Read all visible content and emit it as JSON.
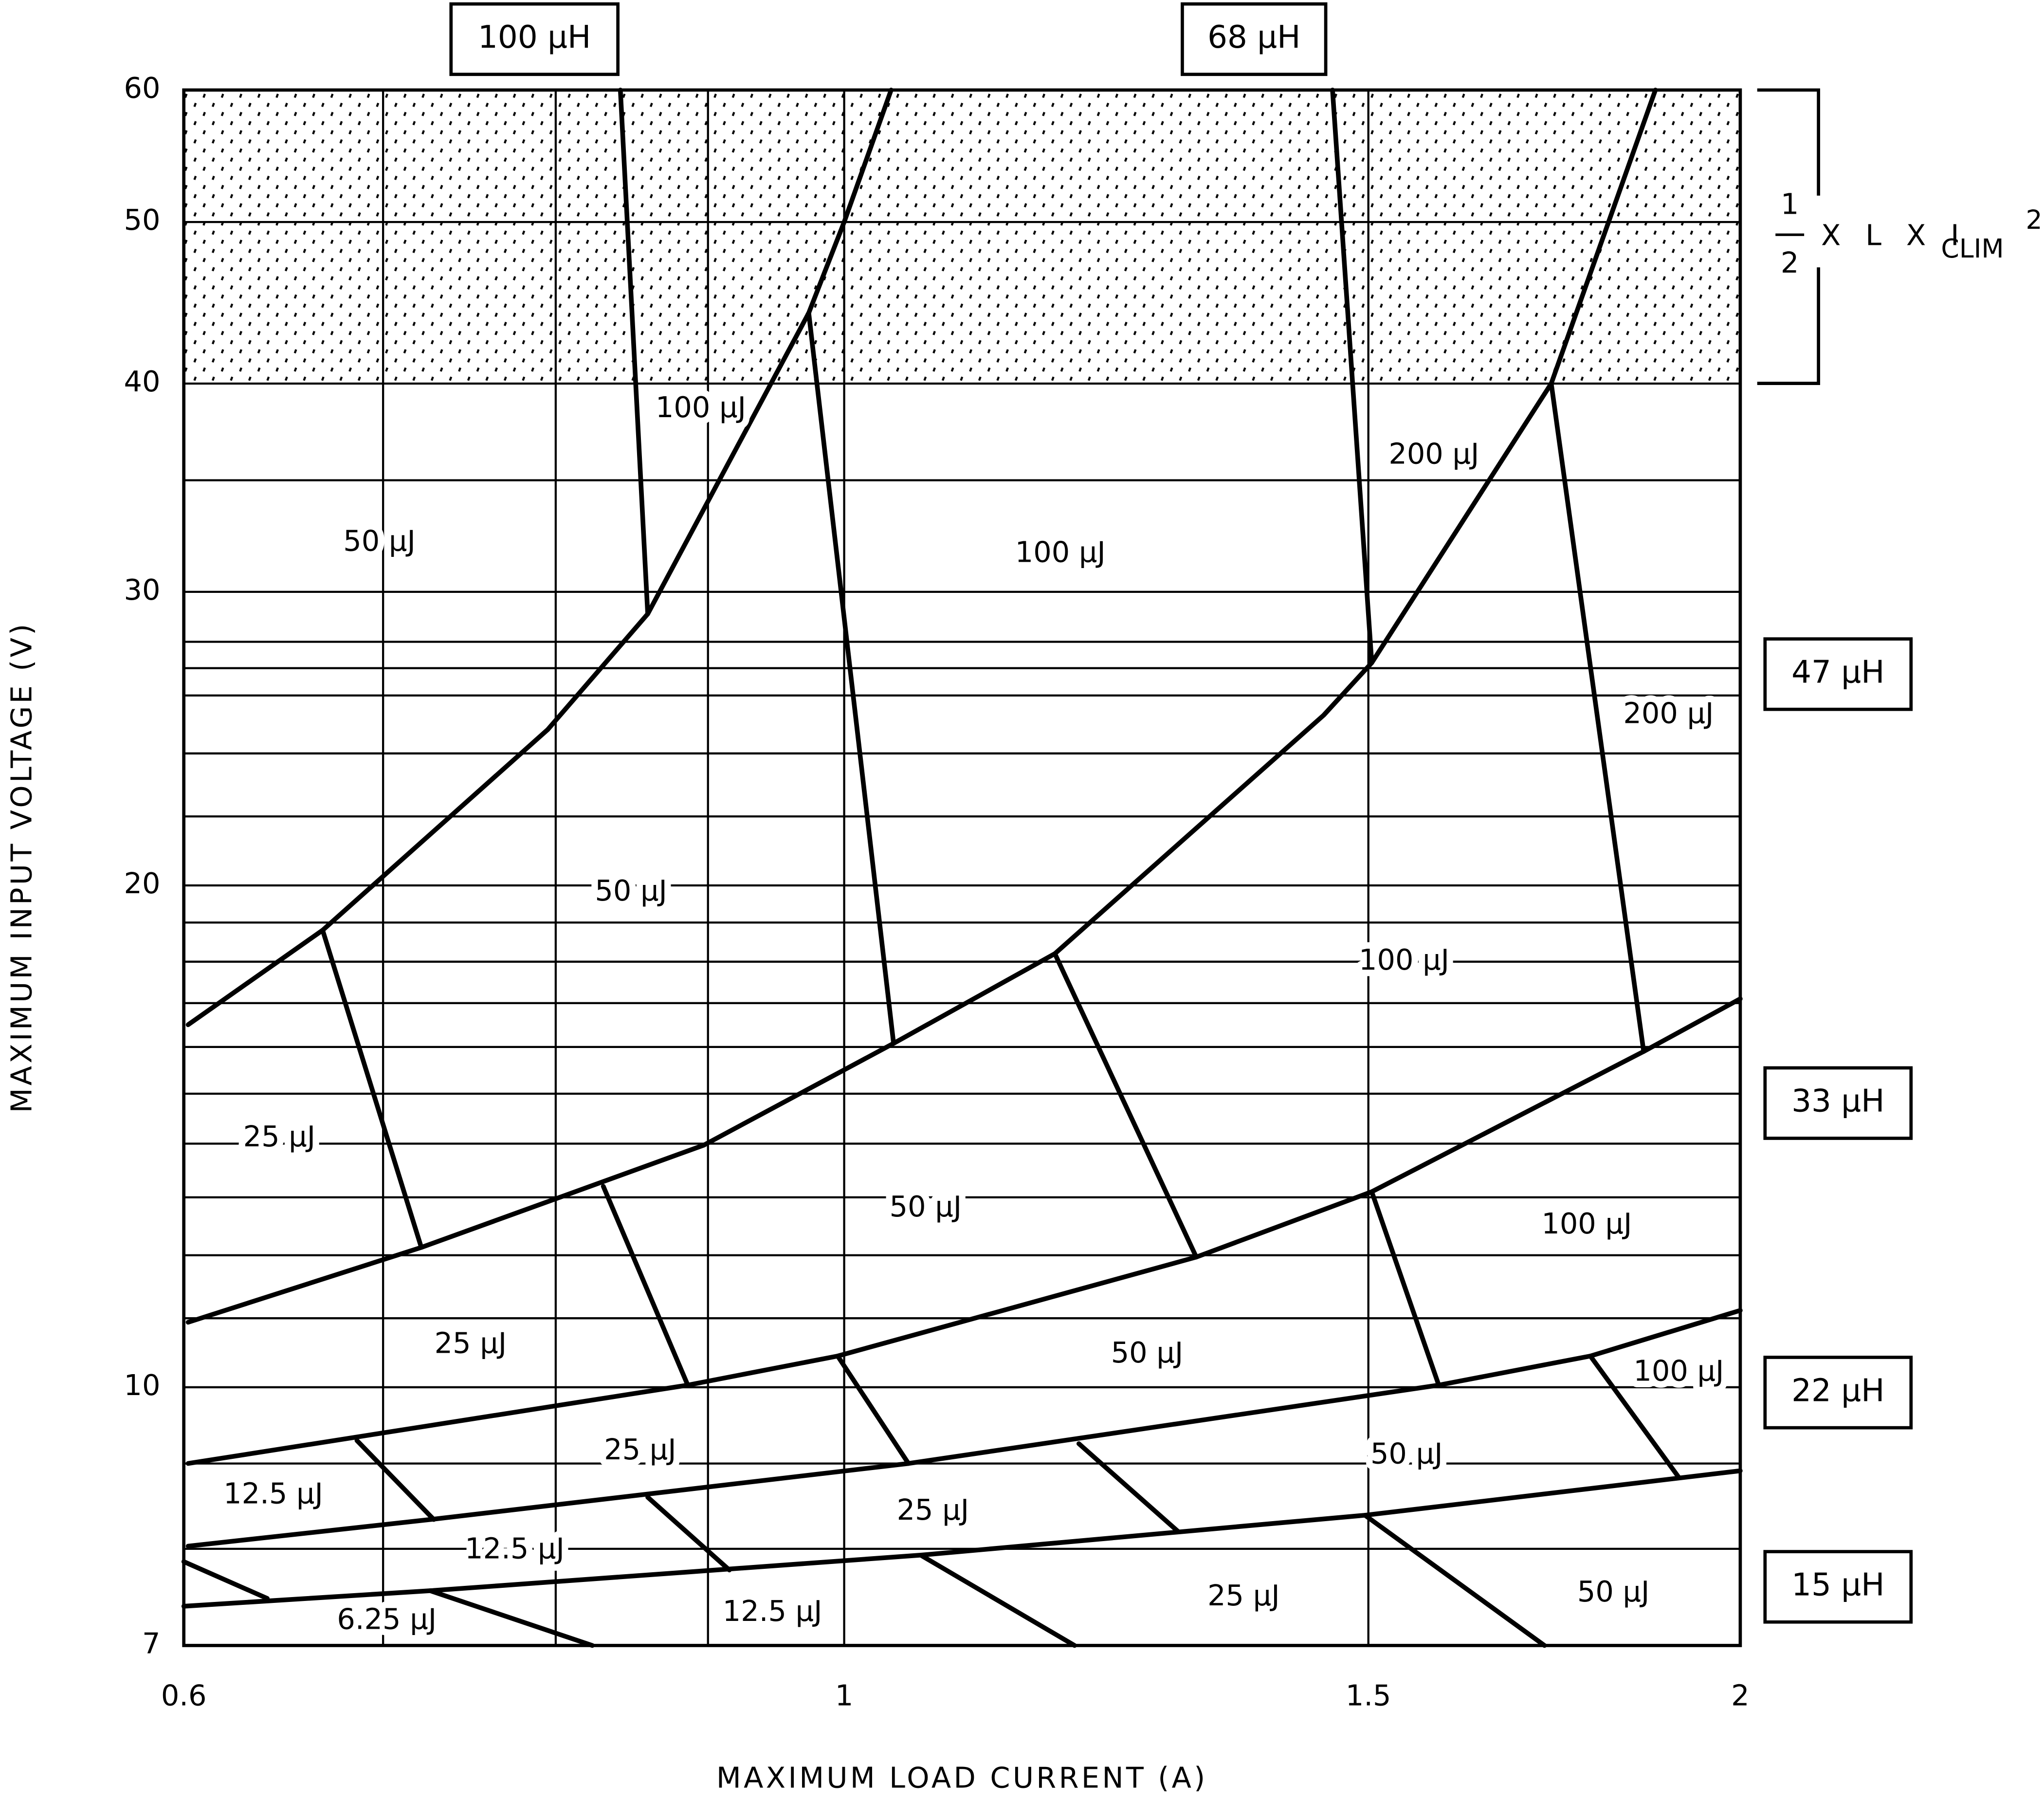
{
  "chart_data": {
    "type": "line",
    "x_label": "MAXIMUM LOAD CURRENT (A)",
    "y_label": "MAXIMUM INPUT VOLTAGE (V)",
    "log_x": true,
    "log_y": true,
    "grid": true,
    "color": "#000000",
    "xlim": [
      0.6,
      2
    ],
    "ylim": [
      7,
      60
    ],
    "xticks": [
      0.6,
      1,
      1.5,
      2
    ],
    "yticks": [
      7,
      10,
      20,
      30,
      40,
      50,
      60
    ],
    "x_minor_grid": [
      0.7,
      0.8,
      0.9
    ],
    "y_minor_grid": [
      8,
      9,
      11,
      12,
      13,
      14,
      15,
      16,
      17,
      18,
      19,
      22,
      24,
      26,
      27,
      28,
      35
    ],
    "shaded_band": [
      40,
      60
    ],
    "formula": {
      "numerator": "1",
      "denominator": "2",
      "text": "X L X I",
      "subscript": "CLIM",
      "superscript": "2"
    },
    "inductor_labels": [
      "100 μH",
      "68 μH",
      "47 μH",
      "33 μH",
      "22 μH",
      "15 μH"
    ],
    "series": [
      {
        "x": [
          0.602,
          0.668,
          0.795,
          0.859,
          0.973,
          1.0,
          1.037
        ],
        "values": [
          16.5,
          18.8,
          24.8,
          29.1,
          44.1,
          50,
          60
        ]
      },
      {
        "x": [
          0.602,
          0.721,
          0.897,
          1.039,
          1.177,
          1.449,
          1.504,
          1.728,
          1.873
        ],
        "values": [
          10.94,
          12.13,
          13.97,
          16.08,
          18.2,
          25.3,
          27.2,
          40,
          60
        ]
      },
      {
        "x": [
          0.602,
          0.886,
          0.995,
          1.313,
          1.504,
          1.856,
          2.0
        ],
        "values": [
          9.0,
          10.03,
          10.44,
          11.97,
          13.1,
          15.9,
          17.1
        ]
      },
      {
        "x": [
          0.602,
          0.726,
          1.051,
          1.584,
          1.781,
          2.0
        ],
        "values": [
          8.03,
          8.33,
          9.0,
          10.03,
          10.44,
          11.12
        ]
      },
      {
        "x": [
          0.6,
          0.726,
          1.061,
          1.496,
          2.0
        ],
        "values": [
          7.39,
          7.55,
          7.93,
          8.38,
          8.91
        ]
      },
      {
        "x": [
          0.841,
          0.859
        ],
        "values": [
          60,
          29.1
        ]
      },
      {
        "x": [
          0.973,
          1.039
        ],
        "values": [
          44.1,
          16.08
        ]
      },
      {
        "x": [
          1.459,
          1.504
        ],
        "values": [
          60,
          27.2
        ]
      },
      {
        "x": [
          1.728,
          1.856
        ],
        "values": [
          40,
          15.9
        ]
      },
      {
        "x": [
          0.668,
          0.721
        ],
        "values": [
          18.8,
          12.13
        ]
      },
      {
        "x": [
          1.177,
          1.313
        ],
        "values": [
          18.2,
          11.97
        ]
      },
      {
        "x": [
          0.83,
          0.886
        ],
        "values": [
          13.2,
          10.03
        ]
      },
      {
        "x": [
          1.504,
          1.584
        ],
        "values": [
          13.1,
          10.03
        ]
      },
      {
        "x": [
          0.995,
          1.051
        ],
        "values": [
          10.44,
          9.0
        ]
      },
      {
        "x": [
          1.199,
          1.295
        ],
        "values": [
          9.25,
          8.19
        ]
      },
      {
        "x": [
          1.781,
          1.907
        ],
        "values": [
          10.44,
          8.83
        ]
      },
      {
        "x": [
          0.686,
          0.728
        ],
        "values": [
          9.29,
          8.33
        ]
      },
      {
        "x": [
          0.859,
          0.915
        ],
        "values": [
          8.59,
          7.77
        ]
      },
      {
        "x": [
          1.496,
          1.719
        ],
        "values": [
          8.38,
          7
        ]
      },
      {
        "x": [
          1.061,
          1.195
        ],
        "values": [
          7.93,
          7
        ]
      },
      {
        "x": [
          0.726,
          0.823
        ],
        "values": [
          7.55,
          7
        ]
      },
      {
        "x": [
          0.6,
          0.64
        ],
        "values": [
          7.86,
          7.47
        ]
      }
    ],
    "annotations": [
      {
        "text": "100 μJ",
        "x": 0.895,
        "y": 38.6
      },
      {
        "text": "50 μJ",
        "x": 0.698,
        "y": 32.1
      },
      {
        "text": "100 μJ",
        "x": 1.182,
        "y": 31.6
      },
      {
        "text": "200 μJ",
        "x": 1.578,
        "y": 36.2
      },
      {
        "text": "200 μJ",
        "x": 1.892,
        "y": 25.3
      },
      {
        "text": "50 μJ",
        "x": 0.848,
        "y": 19.8
      },
      {
        "text": "100 μJ",
        "x": 1.542,
        "y": 18.0
      },
      {
        "text": "25 μJ",
        "x": 0.646,
        "y": 14.1
      },
      {
        "text": "50 μJ",
        "x": 1.065,
        "y": 12.8
      },
      {
        "text": "100 μJ",
        "x": 1.776,
        "y": 12.5
      },
      {
        "text": "25 μJ",
        "x": 0.749,
        "y": 10.6
      },
      {
        "text": "50 μJ",
        "x": 1.264,
        "y": 10.46
      },
      {
        "text": "100 μJ",
        "x": 1.907,
        "y": 10.2
      },
      {
        "text": "25 μJ",
        "x": 0.854,
        "y": 9.15
      },
      {
        "text": "50 μJ",
        "x": 1.545,
        "y": 9.1
      },
      {
        "text": "12.5 μJ",
        "x": 0.643,
        "y": 8.61
      },
      {
        "text": "25 μJ",
        "x": 1.071,
        "y": 8.42
      },
      {
        "text": "12.5 μJ",
        "x": 0.775,
        "y": 7.98
      },
      {
        "text": "25 μJ",
        "x": 1.362,
        "y": 7.48
      },
      {
        "text": "50 μJ",
        "x": 1.813,
        "y": 7.52
      },
      {
        "text": "6.25 μJ",
        "x": 0.702,
        "y": 7.24
      },
      {
        "text": "12.5 μJ",
        "x": 0.946,
        "y": 7.32
      }
    ]
  }
}
